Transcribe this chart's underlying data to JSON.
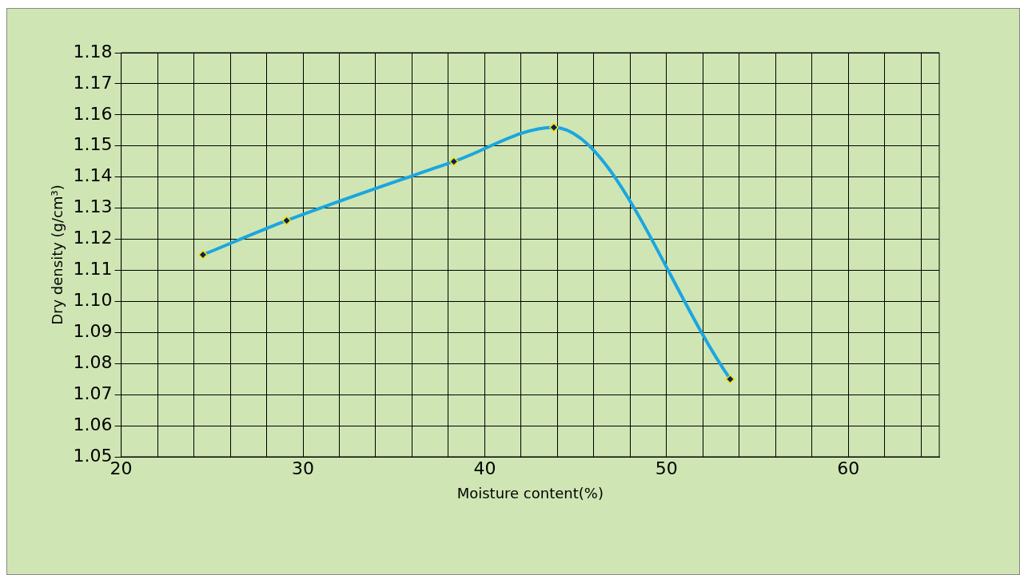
{
  "chart_data": {
    "type": "line",
    "xlabel": "Moisture content(%)",
    "ylabel": "Dry density (g/cm³)",
    "x": [
      24.5,
      29.1,
      38.3,
      43.8,
      53.5
    ],
    "series": [
      {
        "color": "#1ba6e0",
        "values": [
          1.115,
          1.126,
          1.145,
          1.156,
          1.075
        ]
      }
    ],
    "xlim": [
      20,
      65
    ],
    "xticks": [
      20,
      {
        "value": 22,
        "label": null
      },
      {
        "value": 24,
        "label": null
      },
      {
        "value": 26,
        "label": null
      },
      {
        "value": 28,
        "label": null
      },
      30,
      {
        "value": 32,
        "label": null
      },
      {
        "value": 34,
        "label": null
      },
      {
        "value": 36,
        "label": null
      },
      {
        "value": 38,
        "label": null
      },
      40,
      {
        "value": 42,
        "label": null
      },
      {
        "value": 44,
        "label": null
      },
      {
        "value": 46,
        "label": null
      },
      {
        "value": 48,
        "label": null
      },
      50,
      {
        "value": 52,
        "label": null
      },
      {
        "value": 54,
        "label": null
      },
      {
        "value": 56,
        "label": null
      },
      {
        "value": 58,
        "label": null
      },
      60,
      {
        "value": 62,
        "label": null
      },
      {
        "value": 64,
        "label": null
      }
    ],
    "ylim": [
      1.05,
      1.18
    ],
    "yticks": [
      {
        "value": 1.05,
        "label": "1.05"
      },
      {
        "value": 1.06,
        "label": "1.06"
      },
      {
        "value": 1.07,
        "label": "1.07"
      },
      {
        "value": 1.08,
        "label": "1.08"
      },
      {
        "value": 1.09,
        "label": "1.09"
      },
      {
        "value": 1.1,
        "label": "1.10"
      },
      {
        "value": 1.11,
        "label": "1.11"
      },
      {
        "value": 1.12,
        "label": "1.12"
      },
      {
        "value": 1.13,
        "label": "1.13"
      },
      {
        "value": 1.14,
        "label": "1.14"
      },
      {
        "value": 1.15,
        "label": "1.15"
      },
      {
        "value": 1.16,
        "label": "1.16"
      },
      {
        "value": 1.17,
        "label": "1.17"
      },
      {
        "value": 1.18,
        "label": "1.18"
      }
    ],
    "grid": true,
    "marker": "diamond",
    "legend": false
  }
}
